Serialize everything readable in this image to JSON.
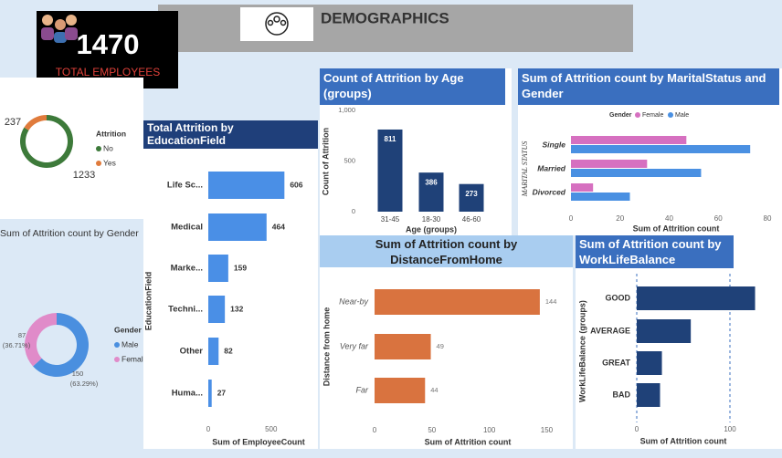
{
  "header": {
    "title": "DEMOGRAPHICS"
  },
  "kpi": {
    "value": 1470,
    "label": "TOTAL EMPLOYEES"
  },
  "chart_data": [
    {
      "type": "donut",
      "legend_title": "Attrition",
      "categories": [
        "No",
        "Yes"
      ],
      "values": [
        1233,
        237
      ],
      "colors": [
        "#3d7a3a",
        "#e07b3c"
      ]
    },
    {
      "type": "donut",
      "title": "Sum of Attrition count by Gender",
      "legend_title": "Gender",
      "categories": [
        "Male",
        "Female"
      ],
      "values": [
        150,
        87
      ],
      "percent_labels": [
        "(63.29%)",
        "(36.71%)"
      ],
      "colors": [
        "#4a8fdf",
        "#e08bc9"
      ]
    },
    {
      "type": "hbar",
      "title": "Total Attrition by EducationField",
      "x_label": "Sum of EmployeeCount",
      "y_label": "EducationField",
      "categories": [
        "Life Sc...",
        "Medical",
        "Marke...",
        "Techni...",
        "Other",
        "Huma..."
      ],
      "values": [
        606,
        464,
        159,
        132,
        82,
        27
      ],
      "color": "#4a8fe6",
      "xlim": [
        0,
        800
      ],
      "xticks": [
        0,
        500
      ]
    },
    {
      "type": "bar",
      "title": "Count of Attrition by Age (groups)",
      "x_label": "Age (groups)",
      "y_label": "Count of Attrition",
      "categories": [
        "31-45",
        "18-30",
        "46-60"
      ],
      "values": [
        811,
        386,
        273
      ],
      "color": "#1f4178",
      "ylim": [
        0,
        1000
      ],
      "yticks": [
        0,
        500,
        {
          "value": 1000,
          "label": "1,000"
        }
      ]
    },
    {
      "type": "hbar",
      "title": "Sum of Attrition count by MaritalStatus and Gender",
      "legend_title": "Gender",
      "x_label": "Sum of Attrition count",
      "y_label": "MARITAL STATUS",
      "categories": [
        "Single",
        "Married",
        "Divorced"
      ],
      "series": [
        {
          "name": "Female",
          "color": "#d670c0",
          "values": [
            47,
            31,
            9
          ]
        },
        {
          "name": "Male",
          "color": "#4a90e2",
          "values": [
            73,
            53,
            24
          ]
        }
      ],
      "xlim": [
        0,
        80
      ],
      "xticks": [
        0,
        20,
        40,
        60,
        80
      ]
    },
    {
      "type": "hbar",
      "title": "Sum of Attrition count by DistanceFromHome",
      "x_label": "Sum of Attrition count",
      "y_label": "Distance from home",
      "categories": [
        "Near-by",
        "Very far",
        "Far"
      ],
      "values": [
        144,
        49,
        44
      ],
      "color": "#d9733f",
      "xlim": [
        0,
        160
      ],
      "xticks": [
        0,
        50,
        100,
        150
      ]
    },
    {
      "type": "hbar",
      "title": "Sum of Attrition count by WorkLifeBalance",
      "x_label": "Sum of Attrition count",
      "y_label": "WorkLifeBalance (groups)",
      "categories": [
        "GOOD",
        "AVERAGE",
        "GREAT",
        "BAD"
      ],
      "values": [
        127,
        58,
        27,
        25
      ],
      "color": "#1f4178",
      "xlim": [
        0,
        150
      ],
      "xticks": [
        0,
        100
      ],
      "grid": true
    }
  ]
}
